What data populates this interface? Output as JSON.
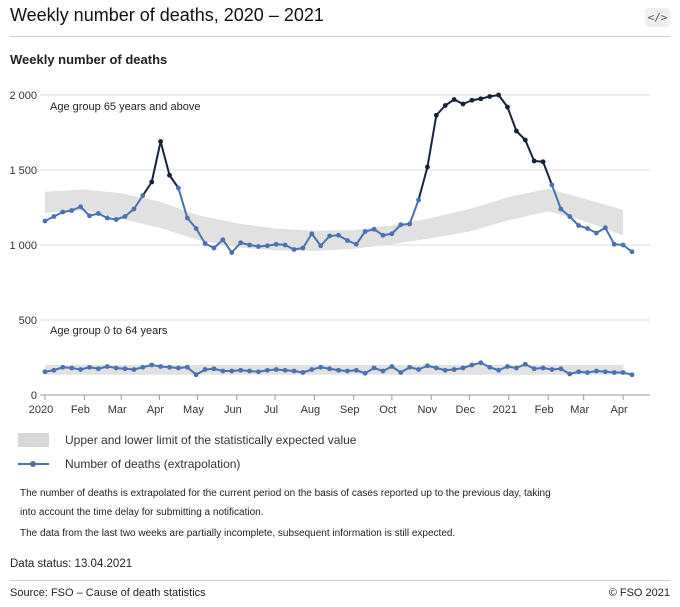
{
  "header": {
    "title": "Weekly number of deaths, 2020 – 2021",
    "embed_icon": "code-embed-icon",
    "embed_glyph": "</>"
  },
  "chart_title": "Weekly number of deaths",
  "chart_data": {
    "type": "line",
    "title": "Weekly number of deaths",
    "y_ticks": [
      "2 000",
      "1 500",
      "1 000",
      "500",
      "0"
    ],
    "y_tick_values": [
      2000,
      1500,
      1000,
      500,
      0
    ],
    "ylim": [
      0,
      2030
    ],
    "x_ticks": [
      "2020",
      "Feb",
      "Mar",
      "Apr",
      "May",
      "Jun",
      "Jul",
      "Aug",
      "Sep",
      "Oct",
      "Nov",
      "Dec",
      "2021",
      "Feb",
      "Mar",
      "Apr"
    ],
    "x_tick_weeks": [
      0,
      4.43,
      8.57,
      12.86,
      17.14,
      21.57,
      25.86,
      30.29,
      34.71,
      39,
      43.43,
      47.71,
      52.14,
      56.57,
      60.57,
      65
    ],
    "grid": "horizontal",
    "annotations": [
      "Age group 65 years and above",
      "Age group 0 to 64 years"
    ],
    "colors": {
      "line": "#4a72b0",
      "line_peak": "#16233b",
      "band": "#e1e1e1"
    },
    "series": [
      {
        "name": "Number of deaths (extrapolation)",
        "group": "Age group 65 years and above",
        "values": [
          1160,
          1190,
          1220,
          1230,
          1255,
          1195,
          1210,
          1180,
          1170,
          1190,
          1240,
          1330,
          1420,
          1690,
          1465,
          1380,
          1180,
          1110,
          1010,
          980,
          1035,
          950,
          1015,
          1000,
          990,
          995,
          1005,
          1000,
          970,
          980,
          1075,
          995,
          1060,
          1065,
          1030,
          1005,
          1090,
          1105,
          1065,
          1075,
          1135,
          1140,
          1300,
          1520,
          1865,
          1930,
          1970,
          1940,
          1965,
          1975,
          1990,
          2000,
          1920,
          1760,
          1700,
          1560,
          1555,
          1400,
          1240,
          1190,
          1130,
          1110,
          1080,
          1115,
          1005,
          1000,
          955
        ]
      },
      {
        "name": "Number of deaths (extrapolation)",
        "group": "Age group 0 to 64 years",
        "values": [
          155,
          165,
          185,
          180,
          170,
          185,
          175,
          190,
          180,
          175,
          170,
          185,
          200,
          190,
          185,
          180,
          185,
          135,
          170,
          175,
          160,
          160,
          165,
          160,
          155,
          165,
          170,
          165,
          160,
          150,
          170,
          185,
          175,
          165,
          160,
          165,
          145,
          180,
          160,
          190,
          150,
          185,
          170,
          195,
          180,
          165,
          170,
          180,
          200,
          215,
          185,
          165,
          190,
          180,
          205,
          175,
          180,
          170,
          175,
          140,
          155,
          150,
          160,
          155,
          150,
          150,
          135
        ]
      }
    ],
    "bands": [
      {
        "name": "Upper and lower limit of the statistically expected value",
        "group": "Age group 65 years and above",
        "weeks": [
          0,
          4.43,
          8.57,
          12.86,
          17.14,
          21.57,
          25.86,
          30.29,
          34.71,
          39,
          43.43,
          47.71,
          52.14,
          56.57,
          60.57,
          65
        ],
        "upper": [
          1355,
          1370,
          1345,
          1290,
          1200,
          1145,
          1110,
          1095,
          1100,
          1130,
          1180,
          1240,
          1320,
          1375,
          1310,
          1235
        ],
        "lower": [
          1215,
          1230,
          1175,
          1115,
          1035,
          985,
          965,
          960,
          975,
          1005,
          1045,
          1090,
          1165,
          1225,
          1160,
          1065
        ]
      },
      {
        "name": "Upper and lower limit of the statistically expected value",
        "group": "Age group 0 to 64 years",
        "weeks": [
          0,
          65
        ],
        "upper": [
          200,
          200
        ],
        "lower": [
          135,
          135
        ]
      }
    ]
  },
  "legend": {
    "band_label": "Upper and lower limit of the statistically expected value",
    "line_label": "Number of deaths (extrapolation)"
  },
  "notes": [
    "The number of deaths is extrapolated for the current period on the basis of cases reported up to the previous day, taking",
    "into account the time delay for submitting a notification.",
    "The data from the last two weeks are partially incomplete, subsequent information is still expected."
  ],
  "data_status": "Data status: 13.04.2021",
  "footer": {
    "source": "Source: FSO – Cause of death statistics",
    "copyright": "© FSO 2021"
  }
}
